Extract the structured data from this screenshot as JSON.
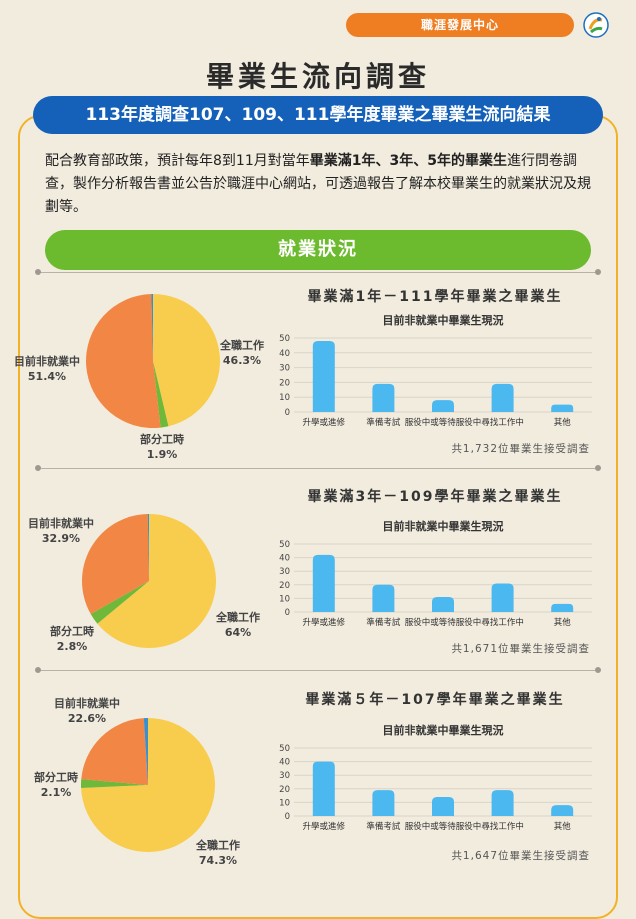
{
  "header": {
    "badge": "職涯發展中心",
    "logo_icon": "career-center-logo"
  },
  "title": "畢業生流向調查",
  "subtitle": "113年度調查107、109、111學年度畢業之畢業生流向結果",
  "intro": {
    "part1": "配合教育部政策，預計每年8到11月對當年",
    "bold": "畢業滿1年、3年、5年的畢業生",
    "part2": "進行問卷調查，製作分析報告書並公告於職涯中心網站，可透過報告了解本校畢業生的就業狀況及規劃等。"
  },
  "section": {
    "title": "就業狀況"
  },
  "colors": {
    "full_time": "#f8cd4e",
    "part_time": "#6fb83a",
    "not_employed": "#f28745",
    "other_slice": "#3a8fd1",
    "bar": "#4cb8f0",
    "orange_badge": "#ef7d22",
    "blue_bar": "#1560b8",
    "green_bar": "#6cba2d",
    "frame": "#f2b227"
  },
  "panels": [
    {
      "title": "畢業滿1年－111學年畢業之畢業生",
      "total_note": "共1,732位畢業生接受調查",
      "pie_labels": {
        "full_time": {
          "name": "全職工作",
          "pct": "46.3%"
        },
        "part_time": {
          "name": "部分工時",
          "pct": "1.9%"
        },
        "not_employed": {
          "name": "目前非就業中",
          "pct": "51.4%"
        }
      }
    },
    {
      "title": "畢業滿3年－109學年畢業之畢業生",
      "total_note": "共1,671位畢業生接受調查",
      "pie_labels": {
        "full_time": {
          "name": "全職工作",
          "pct": "64%"
        },
        "part_time": {
          "name": "部分工時",
          "pct": "2.8%"
        },
        "not_employed": {
          "name": "目前非就業中",
          "pct": "32.9%"
        }
      }
    },
    {
      "title": "畢業滿５年－107學年畢業之畢業生",
      "total_note": "共1,647位畢業生接受調查",
      "pie_labels": {
        "full_time": {
          "name": "全職工作",
          "pct": "74.3%"
        },
        "part_time": {
          "name": "部分工時",
          "pct": "2.1%"
        },
        "not_employed": {
          "name": "目前非就業中",
          "pct": "22.6%"
        }
      }
    }
  ],
  "chart_data": [
    {
      "type": "pie",
      "categories": [
        "全職工作",
        "部分工時",
        "目前非就業中"
      ],
      "values": [
        46.3,
        1.9,
        51.4
      ]
    },
    {
      "type": "bar",
      "title": "目前非就業中畢業生現況",
      "categories": [
        "升學或進修",
        "準備考試",
        "服役中或等待服役中",
        "尋找工作中",
        "其他"
      ],
      "values": [
        48,
        19,
        8,
        19,
        5
      ],
      "ylim": [
        0,
        50
      ],
      "yticks": [
        0,
        10,
        20,
        30,
        40,
        50
      ],
      "grid": true
    },
    {
      "type": "pie",
      "categories": [
        "全職工作",
        "部分工時",
        "目前非就業中"
      ],
      "values": [
        64,
        2.8,
        32.9
      ]
    },
    {
      "type": "bar",
      "title": "目前非就業中畢業生現況",
      "categories": [
        "升學或進修",
        "準備考試",
        "服役中或等待服役中",
        "尋找工作中",
        "其他"
      ],
      "values": [
        42,
        20,
        11,
        21,
        6
      ],
      "ylim": [
        0,
        50
      ],
      "yticks": [
        0,
        10,
        20,
        30,
        40,
        50
      ],
      "grid": true
    },
    {
      "type": "pie",
      "categories": [
        "全職工作",
        "部分工時",
        "目前非就業中"
      ],
      "values": [
        74.3,
        2.1,
        22.6
      ]
    },
    {
      "type": "bar",
      "title": "目前非就業中畢業生現況",
      "categories": [
        "升學或進修",
        "準備考試",
        "服役中或等待服役中",
        "尋找工作中",
        "其他"
      ],
      "values": [
        40,
        19,
        14,
        19,
        8
      ],
      "ylim": [
        0,
        50
      ],
      "yticks": [
        0,
        10,
        20,
        30,
        40,
        50
      ],
      "grid": true
    }
  ]
}
